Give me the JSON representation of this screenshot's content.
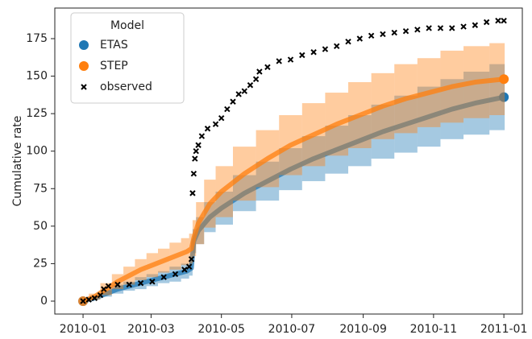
{
  "chart_data": {
    "type": "line",
    "y_label": "Cumulative rate",
    "legend_title": "Model",
    "legend": "upper left",
    "xlim": [
      -24.5,
      381
    ],
    "xticks": [
      {
        "value": 0,
        "label": "2010-01"
      },
      {
        "value": 59,
        "label": "2010-03"
      },
      {
        "value": 120,
        "label": "2010-05"
      },
      {
        "value": 181,
        "label": "2010-07"
      },
      {
        "value": 243,
        "label": "2010-09"
      },
      {
        "value": 304,
        "label": "2010-11"
      },
      {
        "value": 365,
        "label": "2011-01"
      }
    ],
    "ylim": [
      -8.6,
      195.4
    ],
    "yticks": [
      0,
      25,
      50,
      75,
      100,
      125,
      150,
      175
    ],
    "series": [
      {
        "name": "ETAS",
        "color": "#1f77b4",
        "x": [
          0,
          10,
          20,
          30,
          40,
          50,
          60,
          70,
          80,
          90,
          94,
          96,
          100,
          110,
          120,
          140,
          160,
          180,
          200,
          220,
          240,
          260,
          280,
          300,
          320,
          340,
          365
        ],
        "values": [
          0,
          2,
          5,
          8,
          10,
          12,
          14,
          16,
          18,
          20,
          22,
          40,
          47,
          56,
          62,
          72,
          80,
          88,
          95,
          101,
          107,
          113,
          118,
          123,
          128,
          132,
          136
        ],
        "error": [
          0,
          1,
          2,
          3,
          3,
          4,
          4,
          4,
          5,
          5,
          5,
          8,
          9,
          10,
          11,
          12,
          13,
          14,
          15,
          16,
          17,
          18,
          19,
          20,
          20,
          21,
          22
        ]
      },
      {
        "name": "STEP",
        "color": "#ff7f0e",
        "x": [
          0,
          10,
          20,
          30,
          40,
          50,
          60,
          70,
          80,
          90,
          94,
          96,
          100,
          110,
          120,
          140,
          160,
          180,
          200,
          220,
          240,
          260,
          280,
          300,
          320,
          340,
          365
        ],
        "values": [
          0,
          3,
          8,
          13,
          17,
          21,
          24,
          27,
          30,
          33,
          35,
          42,
          52,
          65,
          73,
          85,
          95,
          104,
          111,
          118,
          124,
          130,
          135,
          139,
          143,
          146,
          148
        ],
        "error": [
          0,
          2,
          4,
          5,
          6,
          7,
          8,
          8,
          9,
          9,
          10,
          12,
          14,
          16,
          17,
          18,
          19,
          20,
          21,
          21,
          22,
          22,
          23,
          23,
          24,
          24,
          24
        ]
      },
      {
        "name": "observed",
        "color": "#000000",
        "marker": "x",
        "x": [
          0,
          5,
          10,
          15,
          18,
          22,
          30,
          40,
          50,
          60,
          70,
          80,
          88,
          92,
          94,
          95,
          96,
          97,
          98,
          100,
          103,
          108,
          115,
          120,
          125,
          130,
          135,
          140,
          145,
          150,
          153,
          160,
          170,
          180,
          190,
          200,
          210,
          220,
          230,
          240,
          250,
          260,
          270,
          280,
          290,
          300,
          310,
          320,
          330,
          340,
          350,
          360,
          365
        ],
        "values": [
          0,
          1,
          2,
          4,
          8,
          10,
          11,
          11,
          12,
          13,
          16,
          18,
          21,
          23,
          28,
          72,
          85,
          95,
          100,
          104,
          110,
          115,
          118,
          122,
          128,
          133,
          138,
          140,
          144,
          148,
          153,
          156,
          160,
          161,
          164,
          166,
          168,
          170,
          173,
          175,
          177,
          178,
          179,
          180,
          181,
          182,
          182,
          182,
          183,
          184,
          186,
          187,
          187
        ]
      }
    ]
  }
}
